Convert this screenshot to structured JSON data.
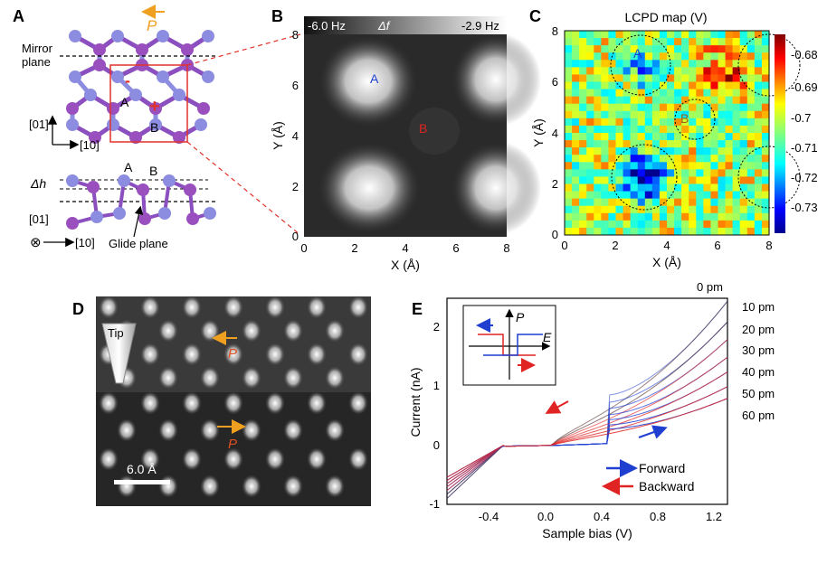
{
  "panels": {
    "A": {
      "letter": "A",
      "polarization": "P",
      "mirror_plane": [
        "Mirror",
        "plane"
      ],
      "site_a": "A",
      "site_b": "B",
      "minus_sign": "-",
      "plus_sign": "+",
      "axis_01": "[01]",
      "axis_10": "[10]",
      "delta_h": "Δh",
      "side_a": "A",
      "side_b": "B",
      "side_axis_01": "[01]",
      "side_axis_10": "[10]",
      "glide_plane": "Glide plane",
      "cross_symbol": "⊗"
    },
    "B": {
      "letter": "B",
      "cb_min": "-6.0 Hz",
      "cb_label": "Δf",
      "cb_max": "-2.9 Hz",
      "xlabel": "X (Å)",
      "ylabel": "Y (Å)",
      "xticks": [
        "0",
        "2",
        "4",
        "6",
        "8"
      ],
      "yticks": [
        "0",
        "2",
        "4",
        "6",
        "8"
      ],
      "site_a": "A",
      "site_b": "B"
    },
    "C": {
      "letter": "C",
      "title": "LCPD map (V)",
      "xlabel": "X (Å)",
      "ylabel": "Y (Å)",
      "xticks": [
        "0",
        "2",
        "4",
        "6",
        "8"
      ],
      "yticks": [
        "0",
        "2",
        "4",
        "6",
        "8"
      ],
      "site_a": "A",
      "site_b": "B",
      "cb_ticks": [
        "-0.68",
        "-0.69",
        "-0.7",
        "-0.71",
        "-0.72",
        "-0.73"
      ]
    },
    "D": {
      "letter": "D",
      "tip_label": "Tip",
      "p_top": "P",
      "p_bottom": "P",
      "scalebar": "6.0 Å"
    },
    "E": {
      "letter": "E",
      "xlabel": "Sample bias (V)",
      "ylabel": "Current (nA)",
      "xticks": [
        "-0.4",
        "0.0",
        "0.4",
        "0.8",
        "1.2"
      ],
      "yticks": [
        "-1",
        "0",
        "1",
        "2"
      ],
      "height_labels": [
        "0 pm",
        "10 pm",
        "20 pm",
        "30 pm",
        "40 pm",
        "50 pm",
        "60 pm"
      ],
      "legend": [
        "Forward",
        "Backward"
      ],
      "inset_p": "P",
      "inset_e": "E"
    }
  },
  "chart_data": {
    "type": "line",
    "title": "",
    "xlabel": "Sample bias (V)",
    "ylabel": "Current (nA)",
    "xlim": [
      -0.7,
      1.3
    ],
    "ylim": [
      -1,
      2.5
    ],
    "tip_heights_pm": [
      0,
      10,
      20,
      30,
      40,
      50,
      60
    ],
    "forward_high_current_nA": [
      2.45,
      2.1,
      1.8,
      1.5,
      1.25,
      1.0,
      0.8
    ],
    "backward_low_current_nA": [
      -1.0,
      -0.92,
      -0.85,
      -0.78,
      -0.72,
      -0.66,
      -0.6
    ],
    "forward_switch_bias_V": 0.45,
    "backward_switch_bias_V": -0.3,
    "series": [
      {
        "name": "Forward",
        "color": "#1f3fd0"
      },
      {
        "name": "Backward",
        "color": "#e02424"
      }
    ]
  },
  "colors": {
    "atom_blue": "#8c8ce0",
    "atom_purple": "#9a4fbf",
    "red_box": "#e0322a",
    "orange": "#f0a020",
    "forward": "#1f3fd0",
    "backward": "#e02424"
  }
}
